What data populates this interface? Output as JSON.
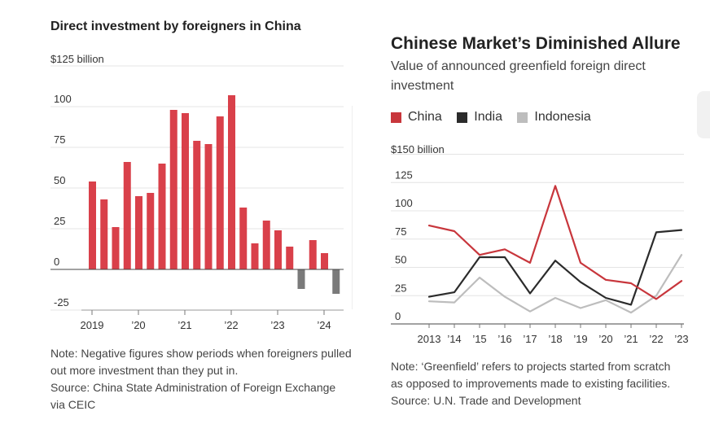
{
  "left": {
    "title": "Direct investment by foreigners in China",
    "unit_label": "$125 billion",
    "note": "Note: Negative figures show periods when foreigners pulled out more investment than they put in.",
    "source": "Source: China State Administration of Foreign Exchange via CEIC"
  },
  "right": {
    "title": "Chinese Market’s Diminished Allure",
    "subtitle": "Value of announced greenfield foreign direct investment",
    "unit_label": "$150 billion",
    "legend": [
      {
        "name": "China",
        "color": "#c8363c"
      },
      {
        "name": "India",
        "color": "#2b2b2b"
      },
      {
        "name": "Indonesia",
        "color": "#bdbdbd"
      }
    ],
    "note": "Note: ‘Greenfield’ refers to projects started from scratch as opposed to improvements made to existing facilities.",
    "source": "Source: U.N. Trade and Development"
  },
  "chart_data": [
    {
      "type": "bar",
      "title": "Direct investment by foreigners in China",
      "ylabel": "$125 billion",
      "ylim": [
        -25,
        125
      ],
      "y_ticks": [
        "$125 billion",
        "100",
        "75",
        "50",
        "25",
        "0",
        "-25"
      ],
      "x_tick_labels": [
        "2019",
        "’20",
        "’21",
        "’22",
        "’23",
        "’24"
      ],
      "grid": true,
      "colors": {
        "positive": "#d9404a",
        "negative": "#7a7a7a"
      },
      "categories": [
        "2019 Q1",
        "2019 Q2",
        "2019 Q3",
        "2019 Q4",
        "2020 Q1",
        "2020 Q2",
        "2020 Q3",
        "2020 Q4",
        "2021 Q1",
        "2021 Q2",
        "2021 Q3",
        "2021 Q4",
        "2022 Q1",
        "2022 Q2",
        "2022 Q3",
        "2022 Q4",
        "2023 Q1",
        "2023 Q2",
        "2023 Q3",
        "2023 Q4",
        "2024 Q1",
        "2024 Q2"
      ],
      "values": [
        54,
        43,
        26,
        66,
        45,
        47,
        65,
        98,
        96,
        79,
        77,
        94,
        107,
        38,
        16,
        30,
        24,
        14,
        -12,
        18,
        10,
        -15
      ]
    },
    {
      "type": "line",
      "title": "Chinese Market’s Diminished Allure",
      "subtitle": "Value of announced greenfield foreign direct investment",
      "ylabel": "$150 billion",
      "ylim": [
        0,
        150
      ],
      "y_ticks": [
        "$150 billion",
        "125",
        "100",
        "75",
        "50",
        "25",
        "0"
      ],
      "x": [
        "2013",
        "’14",
        "’15",
        "’16",
        "’17",
        "’18",
        "’19",
        "’20",
        "’21",
        "’22",
        "’23"
      ],
      "legend_position": "top-left",
      "grid": true,
      "series": [
        {
          "name": "China",
          "color": "#c8363c",
          "values": [
            87,
            82,
            61,
            66,
            54,
            122,
            54,
            39,
            36,
            22,
            38
          ]
        },
        {
          "name": "India",
          "color": "#2b2b2b",
          "values": [
            24,
            28,
            59,
            59,
            27,
            56,
            37,
            23,
            17,
            81,
            83
          ]
        },
        {
          "name": "Indonesia",
          "color": "#bdbdbd",
          "values": [
            20,
            19,
            41,
            24,
            11,
            23,
            14,
            21,
            10,
            25,
            61
          ]
        }
      ]
    }
  ]
}
